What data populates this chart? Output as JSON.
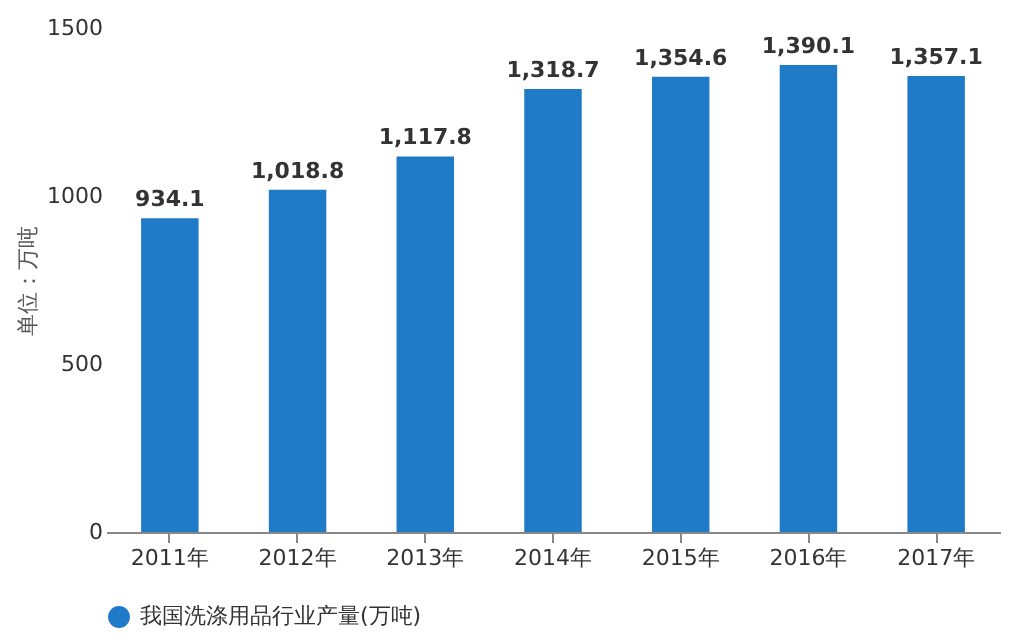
{
  "chart_data": {
    "type": "bar",
    "ylabel": "单位：万吨",
    "categories": [
      "2011年",
      "2012年",
      "2013年",
      "2014年",
      "2015年",
      "2016年",
      "2017年"
    ],
    "series": [
      {
        "name": "我国洗涤用品行业产量(万吨)",
        "color": "#1f7bc8",
        "values": [
          934.1,
          1018.8,
          1117.8,
          1318.7,
          1354.6,
          1390.1,
          1357.1
        ],
        "value_labels": [
          "934.1",
          "1,018.8",
          "1,117.8",
          "1,318.7",
          "1,354.6",
          "1,390.1",
          "1,357.1"
        ]
      }
    ],
    "ylim": [
      0,
      1500
    ],
    "yticks": [
      0,
      500,
      1000,
      1500
    ],
    "grid": false,
    "legend": "bottom"
  }
}
